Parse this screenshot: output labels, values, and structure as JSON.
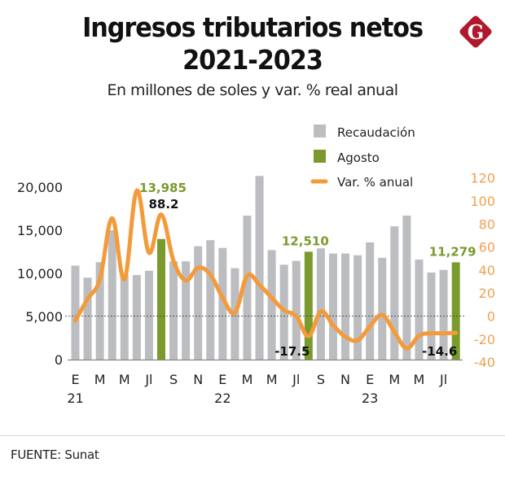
{
  "header": {
    "title_line1": "Ingresos tributarios netos",
    "title_line2": "2021-2023",
    "subtitle": "En millones de soles y var. % real anual",
    "logo_letter": "G",
    "logo_color": "#b0182c"
  },
  "footer": {
    "source": "FUENTE: Sunat"
  },
  "chart_data": {
    "type": "bar+line",
    "title": "Ingresos tributarios netos 2021-2023",
    "subtitle": "En millones de soles y var. % real anual",
    "colors": {
      "bar": "#bcbdc0",
      "highlight": "#7b9a2d",
      "line": "#f39a3a",
      "right_axis": "#f0a050"
    },
    "legend": {
      "position": "top-right",
      "entries": [
        {
          "label": "Recaudación",
          "kind": "bar",
          "color": "#bcbdc0"
        },
        {
          "label": "Agosto",
          "kind": "bar",
          "color": "#7b9a2d"
        },
        {
          "label": "Var. % anual",
          "kind": "line",
          "color": "#f39a3a"
        }
      ]
    },
    "months": [
      "E21",
      "F21",
      "M21",
      "A21",
      "M21",
      "J21",
      "Jl21",
      "Ag21",
      "S21",
      "O21",
      "N21",
      "D21",
      "E22",
      "F22",
      "M22",
      "A22",
      "M22",
      "J22",
      "Jl22",
      "Ag22",
      "S22",
      "O22",
      "N22",
      "D22",
      "E23",
      "F23",
      "M23",
      "A23",
      "M23",
      "J23",
      "Jl23",
      "Ag23"
    ],
    "x_tick_labels": [
      "E",
      "",
      "M",
      "",
      "M",
      "",
      "Jl",
      "",
      "S",
      "",
      "N",
      "",
      "E",
      "",
      "M",
      "",
      "M",
      "",
      "Jl",
      "",
      "S",
      "",
      "N",
      "",
      "E",
      "",
      "M",
      "",
      "M",
      "",
      "Jl",
      ""
    ],
    "year_labels": [
      {
        "index": 0,
        "label": "21"
      },
      {
        "index": 12,
        "label": "22"
      },
      {
        "index": 24,
        "label": "23"
      }
    ],
    "highlight_indices": [
      7,
      19,
      31
    ],
    "series": [
      {
        "name": "Recaudación",
        "axis": "left",
        "values": [
          10900,
          9500,
          11300,
          15000,
          9800,
          9800,
          10300,
          13985,
          11400,
          11400,
          13150,
          13850,
          12950,
          10600,
          16700,
          21300,
          12700,
          11000,
          11450,
          12510,
          12900,
          12300,
          12300,
          12100,
          13600,
          11800,
          15450,
          16700,
          11600,
          10100,
          10400,
          11279
        ]
      },
      {
        "name": "Var. % anual",
        "axis": "right",
        "values": [
          -4,
          15,
          32,
          85,
          32,
          109,
          55,
          88.2,
          48,
          31,
          42,
          36,
          16,
          3,
          35,
          27,
          16,
          5,
          0,
          -17.5,
          4,
          -8,
          -18,
          -21,
          -9,
          1,
          -14,
          -28,
          -17,
          -15,
          -15,
          -14.6
        ]
      }
    ],
    "left_axis": {
      "ylim": [
        0,
        21500
      ],
      "ticks": [
        0,
        5000,
        10000,
        15000,
        20000
      ],
      "tick_labels": [
        "0",
        "5,000",
        "10,000",
        "15,000",
        "20,000"
      ]
    },
    "right_axis": {
      "ylim": [
        -40,
        120
      ],
      "ticks": [
        -40,
        -20,
        0,
        20,
        40,
        60,
        80,
        100,
        120
      ],
      "tick_labels": [
        "-40",
        "-20",
        "0",
        "20",
        "40",
        "60",
        "80",
        "100",
        "120"
      ]
    },
    "reference_line": {
      "axis": "right",
      "value": 0,
      "style": "dashed"
    },
    "annotations": [
      {
        "index": 7,
        "value_label": "13,985",
        "var_label": "88.2"
      },
      {
        "index": 19,
        "value_label": "12,510",
        "var_label": "-17.5"
      },
      {
        "index": 31,
        "value_label": "11,279",
        "var_label": "-14.6"
      }
    ],
    "xlabel": "",
    "ylabel": ""
  }
}
